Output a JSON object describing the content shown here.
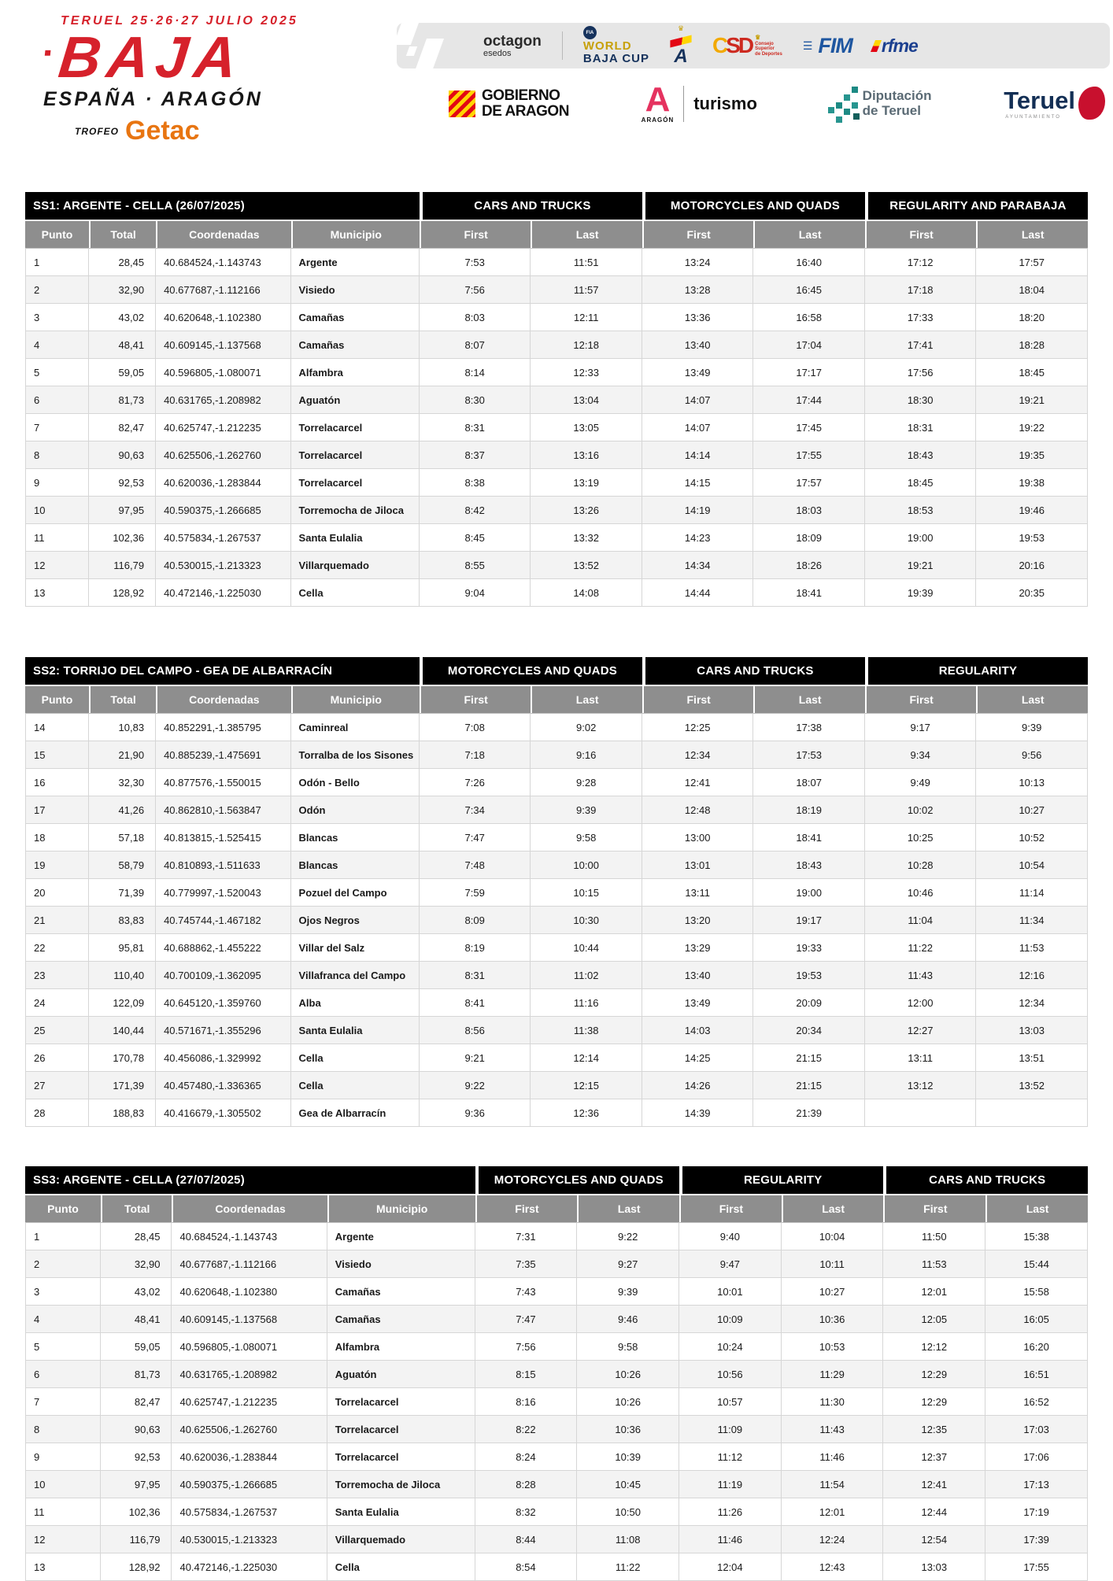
{
  "branding": {
    "tagline": "TERUEL 25·26·27 JULIO 2025",
    "title": "BAJA",
    "subtitle": "ESPAÑA · ARAGÓN",
    "trophy_label": "TROFEO",
    "trophy_brand": "Getac",
    "colors": {
      "red": "#d6212b",
      "orange": "#e87511",
      "header_black": "#000000",
      "header_gray": "#8e8e8e"
    }
  },
  "sponsors": {
    "octagon": {
      "name": "octagon",
      "sub": "esedos"
    },
    "world_baja_cup": {
      "badge": "FIA",
      "line1": "WORLD",
      "line2": "BAJA CUP"
    },
    "rfeda": {
      "letter": "A"
    },
    "csd": {
      "mark_c": "C",
      "mark_sd": "SD",
      "caption1": "Consejo",
      "caption2": "Superior",
      "caption3": "de Deportes"
    },
    "fim": {
      "name": "FIM"
    },
    "rfme": {
      "name": "rfme"
    },
    "gobierno": {
      "line1": "GOBIERNO",
      "line2": "DE ARAGON"
    },
    "aragon_turismo": {
      "letter": "A",
      "sub": "ARAGÓN",
      "label": "turismo"
    },
    "diputacion": {
      "line1": "Diputación",
      "line2": "de Teruel"
    },
    "teruel": {
      "name": "Teruel",
      "sub": "AYUNTAMIENTO"
    }
  },
  "columns": [
    "Punto",
    "Total",
    "Coordenadas",
    "Municipio"
  ],
  "time_columns": [
    "First",
    "Last"
  ],
  "stages": [
    {
      "title": "SS1: ARGENTE -  CELLA  (26/07/2025)",
      "groups": [
        "CARS AND TRUCKS",
        "MOTORCYCLES AND QUADS",
        "REGULARITY AND PARABAJA"
      ],
      "rows": [
        [
          "1",
          "28,45",
          "40.684524,-1.143743",
          "Argente",
          "7:53",
          "11:51",
          "13:24",
          "16:40",
          "17:12",
          "17:57"
        ],
        [
          "2",
          "32,90",
          "40.677687,-1.112166",
          "Visiedo",
          "7:56",
          "11:57",
          "13:28",
          "16:45",
          "17:18",
          "18:04"
        ],
        [
          "3",
          "43,02",
          "40.620648,-1.102380",
          "Camañas",
          "8:03",
          "12:11",
          "13:36",
          "16:58",
          "17:33",
          "18:20"
        ],
        [
          "4",
          "48,41",
          "40.609145,-1.137568",
          "Camañas",
          "8:07",
          "12:18",
          "13:40",
          "17:04",
          "17:41",
          "18:28"
        ],
        [
          "5",
          "59,05",
          "40.596805,-1.080071",
          "Alfambra",
          "8:14",
          "12:33",
          "13:49",
          "17:17",
          "17:56",
          "18:45"
        ],
        [
          "6",
          "81,73",
          "40.631765,-1.208982",
          "Aguatón",
          "8:30",
          "13:04",
          "14:07",
          "17:44",
          "18:30",
          "19:21"
        ],
        [
          "7",
          "82,47",
          "40.625747,-1.212235",
          "Torrelacarcel",
          "8:31",
          "13:05",
          "14:07",
          "17:45",
          "18:31",
          "19:22"
        ],
        [
          "8",
          "90,63",
          "40.625506,-1.262760",
          "Torrelacarcel",
          "8:37",
          "13:16",
          "14:14",
          "17:55",
          "18:43",
          "19:35"
        ],
        [
          "9",
          "92,53",
          "40.620036,-1.283844",
          "Torrelacarcel",
          "8:38",
          "13:19",
          "14:15",
          "17:57",
          "18:45",
          "19:38"
        ],
        [
          "10",
          "97,95",
          "40.590375,-1.266685",
          "Torremocha de Jiloca",
          "8:42",
          "13:26",
          "14:19",
          "18:03",
          "18:53",
          "19:46"
        ],
        [
          "11",
          "102,36",
          "40.575834,-1.267537",
          "Santa Eulalia",
          "8:45",
          "13:32",
          "14:23",
          "18:09",
          "19:00",
          "19:53"
        ],
        [
          "12",
          "116,79",
          "40.530015,-1.213323",
          "Villarquemado",
          "8:55",
          "13:52",
          "14:34",
          "18:26",
          "19:21",
          "20:16"
        ],
        [
          "13",
          "128,92",
          "40.472146,-1.225030",
          "Cella",
          "9:04",
          "14:08",
          "14:44",
          "18:41",
          "19:39",
          "20:35"
        ]
      ]
    },
    {
      "title": "SS2: TORRIJO DEL CAMPO -  GEA DE ALBARRACÍN",
      "groups": [
        "MOTORCYCLES AND QUADS",
        "CARS AND TRUCKS",
        "REGULARITY"
      ],
      "rows": [
        [
          "14",
          "10,83",
          "40.852291,-1.385795",
          "Caminreal",
          "7:08",
          "9:02",
          "12:25",
          "17:38",
          "9:17",
          "9:39"
        ],
        [
          "15",
          "21,90",
          "40.885239,-1.475691",
          "Torralba de los Sisones",
          "7:18",
          "9:16",
          "12:34",
          "17:53",
          "9:34",
          "9:56"
        ],
        [
          "16",
          "32,30",
          "40.877576,-1.550015",
          "Odón - Bello",
          "7:26",
          "9:28",
          "12:41",
          "18:07",
          "9:49",
          "10:13"
        ],
        [
          "17",
          "41,26",
          "40.862810,-1.563847",
          "Odón",
          "7:34",
          "9:39",
          "12:48",
          "18:19",
          "10:02",
          "10:27"
        ],
        [
          "18",
          "57,18",
          "40.813815,-1.525415",
          "Blancas",
          "7:47",
          "9:58",
          "13:00",
          "18:41",
          "10:25",
          "10:52"
        ],
        [
          "19",
          "58,79",
          "40.810893,-1.511633",
          "Blancas",
          "7:48",
          "10:00",
          "13:01",
          "18:43",
          "10:28",
          "10:54"
        ],
        [
          "20",
          "71,39",
          "40.779997,-1.520043",
          "Pozuel del Campo",
          "7:59",
          "10:15",
          "13:11",
          "19:00",
          "10:46",
          "11:14"
        ],
        [
          "21",
          "83,83",
          "40.745744,-1.467182",
          "Ojos Negros",
          "8:09",
          "10:30",
          "13:20",
          "19:17",
          "11:04",
          "11:34"
        ],
        [
          "22",
          "95,81",
          "40.688862,-1.455222",
          "Villar del Salz",
          "8:19",
          "10:44",
          "13:29",
          "19:33",
          "11:22",
          "11:53"
        ],
        [
          "23",
          "110,40",
          "40.700109,-1.362095",
          "Villafranca del Campo",
          "8:31",
          "11:02",
          "13:40",
          "19:53",
          "11:43",
          "12:16"
        ],
        [
          "24",
          "122,09",
          "40.645120,-1.359760",
          "Alba",
          "8:41",
          "11:16",
          "13:49",
          "20:09",
          "12:00",
          "12:34"
        ],
        [
          "25",
          "140,44",
          "40.571671,-1.355296",
          "Santa Eulalia",
          "8:56",
          "11:38",
          "14:03",
          "20:34",
          "12:27",
          "13:03"
        ],
        [
          "26",
          "170,78",
          "40.456086,-1.329992",
          "Cella",
          "9:21",
          "12:14",
          "14:25",
          "21:15",
          "13:11",
          "13:51"
        ],
        [
          "27",
          "171,39",
          "40.457480,-1.336365",
          "Cella",
          "9:22",
          "12:15",
          "14:26",
          "21:15",
          "13:12",
          "13:52"
        ],
        [
          "28",
          "188,83",
          "40.416679,-1.305502",
          "Gea de Albarracín",
          "9:36",
          "12:36",
          "14:39",
          "21:39",
          "",
          ""
        ]
      ]
    },
    {
      "title": "SS3: ARGENTE -  CELLA  (27/07/2025)",
      "groups": [
        "MOTORCYCLES AND QUADS",
        "REGULARITY",
        "CARS AND TRUCKS"
      ],
      "rows": [
        [
          "1",
          "28,45",
          "40.684524,-1.143743",
          "Argente",
          "7:31",
          "9:22",
          "9:40",
          "10:04",
          "11:50",
          "15:38"
        ],
        [
          "2",
          "32,90",
          "40.677687,-1.112166",
          "Visiedo",
          "7:35",
          "9:27",
          "9:47",
          "10:11",
          "11:53",
          "15:44"
        ],
        [
          "3",
          "43,02",
          "40.620648,-1.102380",
          "Camañas",
          "7:43",
          "9:39",
          "10:01",
          "10:27",
          "12:01",
          "15:58"
        ],
        [
          "4",
          "48,41",
          "40.609145,-1.137568",
          "Camañas",
          "7:47",
          "9:46",
          "10:09",
          "10:36",
          "12:05",
          "16:05"
        ],
        [
          "5",
          "59,05",
          "40.596805,-1.080071",
          "Alfambra",
          "7:56",
          "9:58",
          "10:24",
          "10:53",
          "12:12",
          "16:20"
        ],
        [
          "6",
          "81,73",
          "40.631765,-1.208982",
          "Aguatón",
          "8:15",
          "10:26",
          "10:56",
          "11:29",
          "12:29",
          "16:51"
        ],
        [
          "7",
          "82,47",
          "40.625747,-1.212235",
          "Torrelacarcel",
          "8:16",
          "10:26",
          "10:57",
          "11:30",
          "12:29",
          "16:52"
        ],
        [
          "8",
          "90,63",
          "40.625506,-1.262760",
          "Torrelacarcel",
          "8:22",
          "10:36",
          "11:09",
          "11:43",
          "12:35",
          "17:03"
        ],
        [
          "9",
          "92,53",
          "40.620036,-1.283844",
          "Torrelacarcel",
          "8:24",
          "10:39",
          "11:12",
          "11:46",
          "12:37",
          "17:06"
        ],
        [
          "10",
          "97,95",
          "40.590375,-1.266685",
          "Torremocha de Jiloca",
          "8:28",
          "10:45",
          "11:19",
          "11:54",
          "12:41",
          "17:13"
        ],
        [
          "11",
          "102,36",
          "40.575834,-1.267537",
          "Santa Eulalia",
          "8:32",
          "10:50",
          "11:26",
          "12:01",
          "12:44",
          "17:19"
        ],
        [
          "12",
          "116,79",
          "40.530015,-1.213323",
          "Villarquemado",
          "8:44",
          "11:08",
          "11:46",
          "12:24",
          "12:54",
          "17:39"
        ],
        [
          "13",
          "128,92",
          "40.472146,-1.225030",
          "Cella",
          "8:54",
          "11:22",
          "12:04",
          "12:43",
          "13:03",
          "17:55"
        ]
      ]
    }
  ]
}
